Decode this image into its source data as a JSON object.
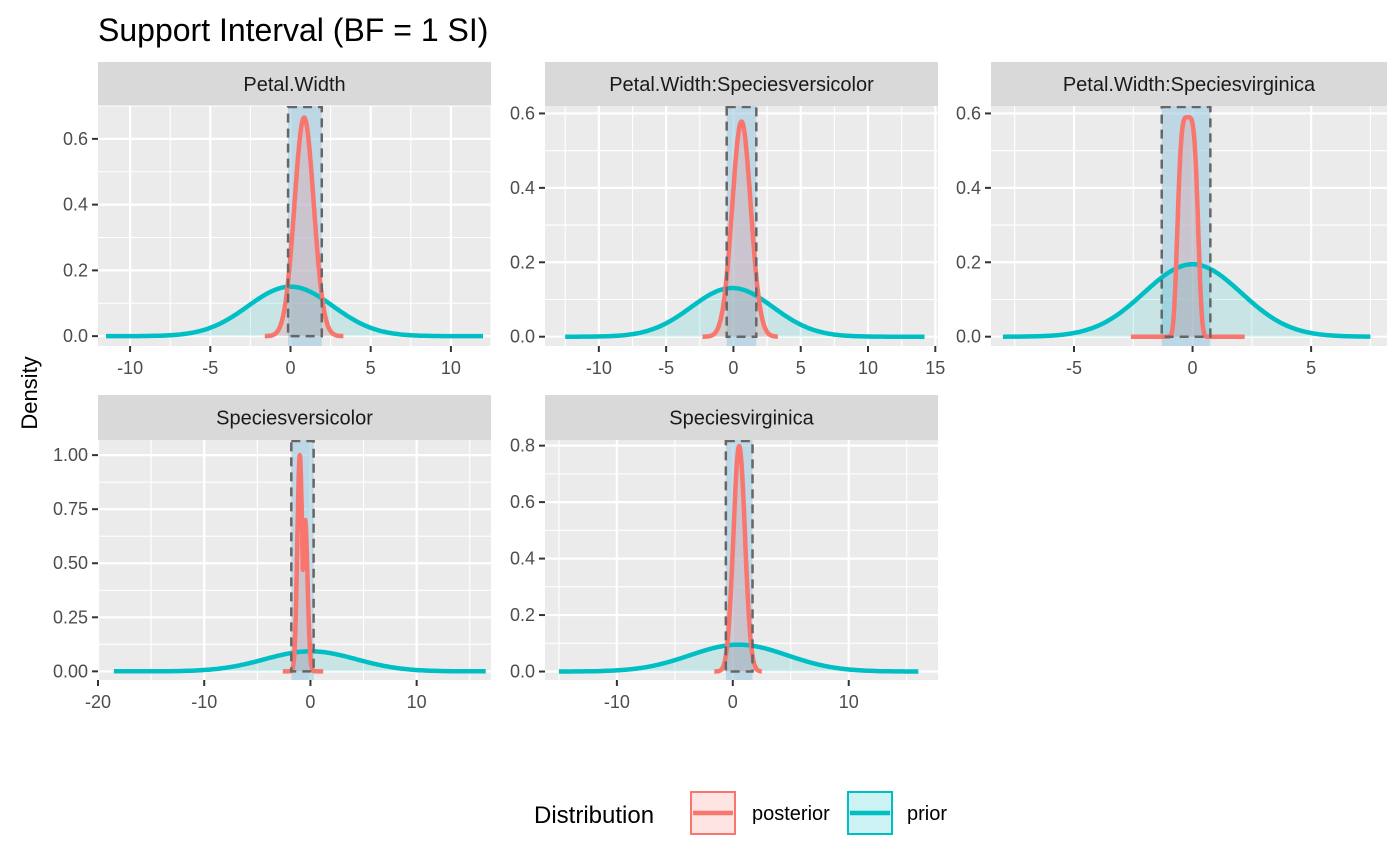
{
  "chart_data": {
    "type": "area",
    "title": "Support Interval (BF = 1 SI)",
    "ylabel": "Density",
    "xlabel": "",
    "legend": {
      "title": "Distribution",
      "position": "bottom",
      "entries": [
        {
          "label": "posterior",
          "color": "#F8766D"
        },
        {
          "label": "prior",
          "color": "#00BFC4"
        }
      ]
    },
    "colors": {
      "posterior": "#F8766D",
      "prior": "#00BFC4",
      "support_interval_fill": "#9ecae1",
      "support_interval_border": "#666666",
      "panel_background": "#ebebeb",
      "strip_background": "#d9d9d9"
    },
    "panels": [
      {
        "name": "Petal.Width",
        "xlim": [
          -12,
          12.5
        ],
        "ylim": [
          -0.03,
          0.7
        ],
        "x_ticks": [
          -10,
          -5,
          0,
          5,
          10
        ],
        "x_tick_labels": [
          "-10",
          "-5",
          "0",
          "5",
          "10"
        ],
        "y_ticks": [
          0,
          0.2,
          0.4,
          0.6
        ],
        "y_tick_labels": [
          "0.0",
          "0.2",
          "0.4",
          "0.6"
        ],
        "support_interval": [
          -0.15,
          1.95
        ],
        "prior": {
          "mean": 0.0,
          "sd": 2.65,
          "range": [
            -11.5,
            12.0
          ]
        },
        "posterior": {
          "shape": "normal",
          "mean": 0.85,
          "sd": 0.6,
          "range": [
            -1.6,
            3.3
          ]
        }
      },
      {
        "name": "Petal.Width:Speciesversicolor",
        "xlim": [
          -14,
          15.2
        ],
        "ylim": [
          -0.025,
          0.62
        ],
        "x_ticks": [
          -10,
          -5,
          0,
          5,
          10,
          15
        ],
        "x_tick_labels": [
          "-10",
          "-5",
          "0",
          "5",
          "10",
          "15"
        ],
        "y_ticks": [
          0,
          0.2,
          0.4,
          0.6
        ],
        "y_tick_labels": [
          "0.0",
          "0.2",
          "0.4",
          "0.6"
        ],
        "support_interval": [
          -0.5,
          1.7
        ],
        "prior": {
          "mean": -0.1,
          "sd": 3.05,
          "range": [
            -12.5,
            14.2
          ]
        },
        "posterior": {
          "shape": "normal",
          "mean": 0.6,
          "sd": 0.69,
          "range": [
            -2.3,
            3.3
          ]
        }
      },
      {
        "name": "Petal.Width:Speciesvirginica",
        "xlim": [
          -8.5,
          8.2
        ],
        "ylim": [
          -0.025,
          0.62
        ],
        "x_ticks": [
          -5,
          0,
          5
        ],
        "x_tick_labels": [
          "-5",
          "0",
          "5"
        ],
        "y_ticks": [
          0,
          0.2,
          0.4,
          0.6
        ],
        "y_tick_labels": [
          "0.0",
          "0.2",
          "0.4",
          "0.6"
        ],
        "support_interval": [
          -1.3,
          0.75
        ],
        "prior": {
          "mean": 0.0,
          "sd": 2.05,
          "range": [
            -8.0,
            7.5
          ]
        },
        "posterior": {
          "shape": "flat_top",
          "mean": -0.2,
          "sd": 0.48,
          "peak": 0.59,
          "range": [
            -2.6,
            2.2
          ]
        }
      },
      {
        "name": "Speciesversicolor",
        "xlim": [
          -20,
          17
        ],
        "ylim": [
          -0.04,
          1.07
        ],
        "x_ticks": [
          -20,
          -10,
          0,
          10
        ],
        "x_tick_labels": [
          "-20",
          "-10",
          "0",
          "10"
        ],
        "y_ticks": [
          0,
          0.25,
          0.5,
          0.75,
          1.0
        ],
        "y_tick_labels": [
          "0.00",
          "0.25",
          "0.50",
          "0.75",
          "1.00"
        ],
        "support_interval": [
          -1.8,
          0.3
        ],
        "prior": {
          "mean": 0.0,
          "sd": 4.3,
          "range": [
            -18.5,
            16.5
          ]
        },
        "posterior": {
          "shape": "bimodal",
          "mean": -0.75,
          "sd": 0.42,
          "peak": 1.0,
          "range": [
            -2.6,
            1.2
          ]
        }
      },
      {
        "name": "Speciesvirginica",
        "xlim": [
          -16.2,
          17.7
        ],
        "ylim": [
          -0.03,
          0.82
        ],
        "x_ticks": [
          -10,
          0,
          10
        ],
        "x_tick_labels": [
          "-10",
          "0",
          "10"
        ],
        "y_ticks": [
          0,
          0.2,
          0.4,
          0.6,
          0.8
        ],
        "y_tick_labels": [
          "0.0",
          "0.2",
          "0.4",
          "0.6",
          "0.8"
        ],
        "support_interval": [
          -0.6,
          1.7
        ],
        "prior": {
          "mean": 0.5,
          "sd": 4.2,
          "range": [
            -15.0,
            16.0
          ]
        },
        "posterior": {
          "shape": "normal",
          "mean": 0.55,
          "sd": 0.5,
          "range": [
            -1.6,
            2.5
          ]
        }
      }
    ]
  }
}
